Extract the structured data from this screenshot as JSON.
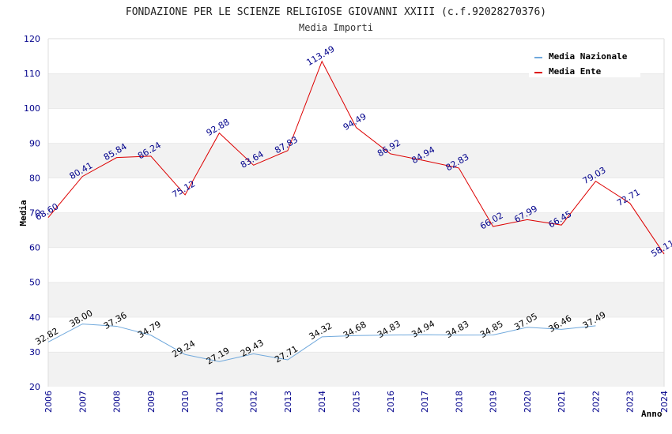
{
  "chart_data": {
    "type": "line",
    "title": "FONDAZIONE PER LE SCIENZE RELIGIOSE GIOVANNI XXIII (c.f.92028270376)",
    "subtitle": "Media Importi",
    "xlabel": "Anno",
    "ylabel": "Media",
    "ylim": [
      20,
      120
    ],
    "yticks": [
      "20",
      "30",
      "40",
      "50",
      "60",
      "70",
      "80",
      "90",
      "100",
      "110",
      "120"
    ],
    "categories": [
      "2006",
      "2007",
      "2008",
      "2009",
      "2010",
      "2011",
      "2012",
      "2013",
      "2014",
      "2015",
      "2016",
      "2017",
      "2018",
      "2019",
      "2020",
      "2021",
      "2022",
      "2023",
      "2024"
    ],
    "grid": "horizontal bands",
    "legend_position": "top-right",
    "series": [
      {
        "name": "Media Nazionale",
        "color": "#6fa8dc",
        "values": [
          32.82,
          38.0,
          37.36,
          34.79,
          29.24,
          27.19,
          29.43,
          27.71,
          34.32,
          34.68,
          34.83,
          34.94,
          34.83,
          34.85,
          37.05,
          36.46,
          37.49,
          null,
          null
        ],
        "labels": [
          "32.82",
          "38.00",
          "37.36",
          "34.79",
          "29.24",
          "27.19",
          "29.43",
          "27.71",
          "34.32",
          "34.68",
          "34.83",
          "34.94",
          "34.83",
          "34.85",
          "37.05",
          "36.46",
          "37.49",
          null,
          null
        ]
      },
      {
        "name": "Media Ente",
        "color": "#dd0000",
        "values": [
          68.6,
          80.41,
          85.84,
          86.24,
          75.12,
          92.88,
          83.64,
          87.83,
          113.49,
          94.49,
          86.92,
          84.94,
          82.83,
          66.02,
          67.99,
          66.45,
          79.03,
          72.71,
          58.11
        ],
        "labels": [
          "68.60",
          "80.41",
          "85.84",
          "86.24",
          "75.12",
          "92.88",
          "83.64",
          "87.83",
          "113.49",
          "94.49",
          "86.92",
          "84.94",
          "82.83",
          "66.02",
          "67.99",
          "66.45",
          "79.03",
          "72.71",
          "58.11"
        ]
      }
    ]
  }
}
